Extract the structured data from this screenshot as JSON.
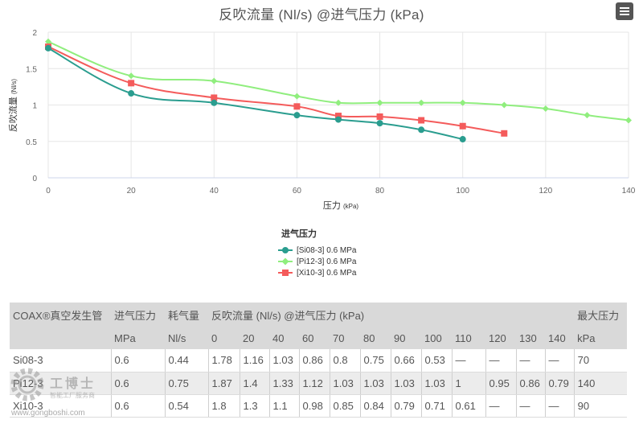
{
  "chart_data": {
    "type": "line",
    "title": "反吹流量 (Nl/s) @进气压力 (kPa)",
    "xlabel": "压力",
    "xlabel_unit": "(kPa)",
    "ylabel": "反吹流量",
    "ylabel_unit": "(Nl/s)",
    "xlim": [
      0,
      140
    ],
    "ylim": [
      0,
      2
    ],
    "xticks": [
      0,
      20,
      40,
      60,
      80,
      100,
      120,
      140
    ],
    "yticks": [
      0,
      0.5,
      1,
      1.5,
      2
    ],
    "grid": true,
    "legend_title": "进气压力",
    "legend_position": "bottom-center",
    "series": [
      {
        "name": "[Si08-3] 0.6 MPa",
        "color": "#2a9d8f",
        "marker": "circle",
        "x": [
          0,
          20,
          40,
          60,
          70,
          80,
          90,
          100
        ],
        "y": [
          1.78,
          1.16,
          1.03,
          0.86,
          0.8,
          0.75,
          0.66,
          0.53
        ]
      },
      {
        "name": "[Pi12-3] 0.6 MPa",
        "color": "#90ee7e",
        "marker": "diamond",
        "x": [
          0,
          20,
          40,
          60,
          70,
          80,
          90,
          100,
          110,
          120,
          130,
          140
        ],
        "y": [
          1.87,
          1.4,
          1.33,
          1.12,
          1.03,
          1.03,
          1.03,
          1.03,
          1,
          0.95,
          0.86,
          0.79
        ]
      },
      {
        "name": "[Xi10-3] 0.6 MPa",
        "color": "#f45b5b",
        "marker": "square",
        "x": [
          0,
          20,
          40,
          60,
          70,
          80,
          90,
          100,
          110
        ],
        "y": [
          1.8,
          1.3,
          1.1,
          0.98,
          0.85,
          0.84,
          0.79,
          0.71,
          0.61
        ]
      }
    ]
  },
  "table": {
    "header_row1": [
      "COAX®真空发生管",
      "进气压力",
      "耗气量",
      "反吹流量 (Nl/s) @进气压力 (kPa)",
      "最大压力"
    ],
    "header_row2": [
      "",
      "MPa",
      "Nl/s",
      "0",
      "20",
      "40",
      "60",
      "70",
      "80",
      "90",
      "100",
      "110",
      "120",
      "130",
      "140",
      "kPa"
    ],
    "rows": [
      [
        "Si08-3",
        "0.6",
        "0.44",
        "1.78",
        "1.16",
        "1.03",
        "0.86",
        "0.8",
        "0.75",
        "0.66",
        "0.53",
        "—",
        "—",
        "—",
        "—",
        "70"
      ],
      [
        "Pi12-3",
        "0.6",
        "0.75",
        "1.87",
        "1.4",
        "1.33",
        "1.12",
        "1.03",
        "1.03",
        "1.03",
        "1.03",
        "1",
        "0.95",
        "0.86",
        "0.79",
        "140"
      ],
      [
        "Xi10-3",
        "0.6",
        "0.54",
        "1.8",
        "1.3",
        "1.1",
        "0.98",
        "0.85",
        "0.84",
        "0.79",
        "0.71",
        "0.61",
        "—",
        "—",
        "—",
        "90"
      ]
    ]
  },
  "watermark": {
    "brand": "工博士",
    "subtitle": "智能工厂服务商",
    "url": "www.gongboshi.com"
  }
}
